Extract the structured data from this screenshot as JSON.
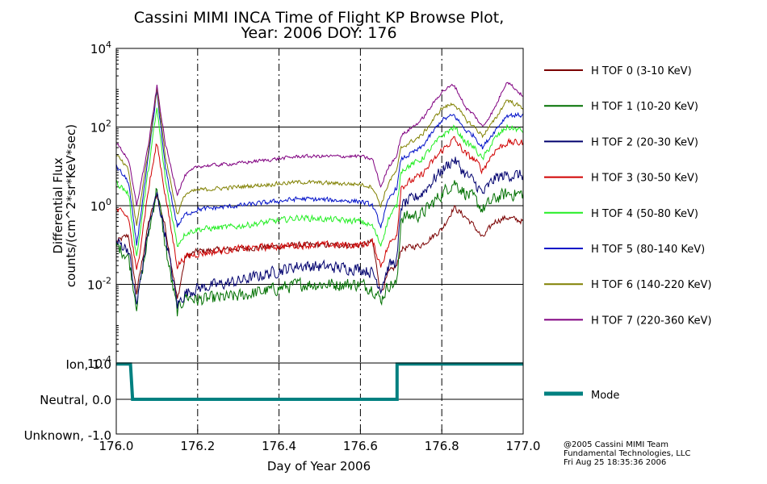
{
  "chart_data": {
    "type": "line",
    "title_line1": "Cassini MIMI INCA Time of Flight KP Browse Plot,",
    "title_line2": "Year: 2006 DOY: 176",
    "xlabel": "Day of Year 2006",
    "x_ticks": [
      "176.0",
      "176.2",
      "176.4",
      "176.6",
      "176.8",
      "177.0"
    ],
    "xlim": [
      176.0,
      177.0
    ],
    "upper_panel": {
      "ylabel_line1": "Differential Flux",
      "ylabel_line2": "counts/(cm^2*sr*KeV*sec)",
      "yscale": "log",
      "ylim": [
        0.0001,
        10000
      ],
      "y_ticks": [
        {
          "base": "10",
          "exp": "4",
          "value": 10000
        },
        {
          "base": "10",
          "exp": "2",
          "value": 100
        },
        {
          "base": "10",
          "exp": "0",
          "value": 1
        },
        {
          "base": "10",
          "exp": "-2",
          "value": 0.01
        },
        {
          "base": "10",
          "exp": "-4",
          "value": 0.0001
        }
      ],
      "note": "",
      "series": [
        {
          "name": "H TOF 0 (3-10 KeV)",
          "color": "#7a0000",
          "noise": 0.1,
          "points": [
            [
              176.0,
              0.12
            ],
            [
              176.03,
              0.18
            ],
            [
              176.05,
              0.006
            ],
            [
              176.08,
              0.4
            ],
            [
              176.1,
              2.0
            ],
            [
              176.12,
              0.3
            ],
            [
              176.15,
              0.004
            ],
            [
              176.17,
              0.05
            ],
            [
              176.2,
              0.07
            ],
            [
              176.3,
              0.08
            ],
            [
              176.45,
              0.1
            ],
            [
              176.6,
              0.1
            ],
            [
              176.63,
              0.12
            ],
            [
              176.65,
              0.006
            ],
            [
              176.67,
              0.02
            ],
            [
              176.69,
              0.03
            ],
            [
              176.7,
              0.08
            ],
            [
              176.75,
              0.1
            ],
            [
              176.8,
              0.25
            ],
            [
              176.83,
              0.9
            ],
            [
              176.86,
              0.5
            ],
            [
              176.88,
              0.3
            ],
            [
              176.9,
              0.15
            ],
            [
              176.93,
              0.4
            ],
            [
              176.96,
              0.5
            ],
            [
              177.0,
              0.4
            ]
          ]
        },
        {
          "name": "H TOF 1 (10-20 KeV)",
          "color": "#007000",
          "noise": 0.22,
          "points": [
            [
              176.0,
              0.1
            ],
            [
              176.03,
              0.05
            ],
            [
              176.05,
              0.003
            ],
            [
              176.08,
              0.2
            ],
            [
              176.1,
              3.0
            ],
            [
              176.12,
              0.1
            ],
            [
              176.15,
              0.002
            ],
            [
              176.17,
              0.005
            ],
            [
              176.2,
              0.004
            ],
            [
              176.3,
              0.005
            ],
            [
              176.45,
              0.01
            ],
            [
              176.6,
              0.01
            ],
            [
              176.63,
              0.008
            ],
            [
              176.65,
              0.004
            ],
            [
              176.67,
              0.01
            ],
            [
              176.69,
              0.01
            ],
            [
              176.7,
              0.5
            ],
            [
              176.75,
              0.6
            ],
            [
              176.8,
              2.0
            ],
            [
              176.83,
              4.0
            ],
            [
              176.86,
              2.0
            ],
            [
              176.88,
              1.5
            ],
            [
              176.9,
              0.8
            ],
            [
              176.93,
              1.5
            ],
            [
              176.96,
              2.0
            ],
            [
              177.0,
              2.0
            ]
          ]
        },
        {
          "name": "H TOF 2 (20-30 KeV)",
          "color": "#00006e",
          "noise": 0.2,
          "points": [
            [
              176.0,
              0.12
            ],
            [
              176.03,
              0.08
            ],
            [
              176.05,
              0.003
            ],
            [
              176.08,
              0.3
            ],
            [
              176.1,
              2.0
            ],
            [
              176.12,
              0.2
            ],
            [
              176.15,
              0.003
            ],
            [
              176.17,
              0.006
            ],
            [
              176.2,
              0.008
            ],
            [
              176.3,
              0.012
            ],
            [
              176.45,
              0.03
            ],
            [
              176.6,
              0.025
            ],
            [
              176.63,
              0.02
            ],
            [
              176.65,
              0.008
            ],
            [
              176.67,
              0.03
            ],
            [
              176.69,
              0.04
            ],
            [
              176.7,
              1.0
            ],
            [
              176.75,
              2.0
            ],
            [
              176.8,
              8.0
            ],
            [
              176.83,
              15.0
            ],
            [
              176.86,
              6.0
            ],
            [
              176.88,
              4.0
            ],
            [
              176.9,
              2.0
            ],
            [
              176.93,
              5.0
            ],
            [
              176.96,
              6.0
            ],
            [
              177.0,
              6.0
            ]
          ]
        },
        {
          "name": "H TOF 3 (30-50 KeV)",
          "color": "#d00000",
          "noise": 0.12,
          "points": [
            [
              176.0,
              0.8
            ],
            [
              176.03,
              0.5
            ],
            [
              176.05,
              0.02
            ],
            [
              176.08,
              3.0
            ],
            [
              176.1,
              40.0
            ],
            [
              176.12,
              2.0
            ],
            [
              176.15,
              0.03
            ],
            [
              176.17,
              0.05
            ],
            [
              176.2,
              0.06
            ],
            [
              176.3,
              0.08
            ],
            [
              176.45,
              0.1
            ],
            [
              176.6,
              0.1
            ],
            [
              176.63,
              0.12
            ],
            [
              176.65,
              0.03
            ],
            [
              176.67,
              0.1
            ],
            [
              176.69,
              0.2
            ],
            [
              176.7,
              3.0
            ],
            [
              176.75,
              6.0
            ],
            [
              176.8,
              25.0
            ],
            [
              176.83,
              50.0
            ],
            [
              176.86,
              20.0
            ],
            [
              176.88,
              15.0
            ],
            [
              176.9,
              8.0
            ],
            [
              176.93,
              25.0
            ],
            [
              176.96,
              40.0
            ],
            [
              177.0,
              40.0
            ]
          ]
        },
        {
          "name": "H TOF 4 (50-80 KeV)",
          "color": "#22ee22",
          "noise": 0.1,
          "points": [
            [
              176.0,
              4.0
            ],
            [
              176.03,
              2.0
            ],
            [
              176.05,
              0.05
            ],
            [
              176.08,
              10.0
            ],
            [
              176.1,
              300.0
            ],
            [
              176.12,
              5.0
            ],
            [
              176.15,
              0.1
            ],
            [
              176.17,
              0.2
            ],
            [
              176.2,
              0.25
            ],
            [
              176.3,
              0.3
            ],
            [
              176.45,
              0.5
            ],
            [
              176.6,
              0.4
            ],
            [
              176.63,
              0.3
            ],
            [
              176.65,
              0.1
            ],
            [
              176.67,
              0.5
            ],
            [
              176.69,
              1.0
            ],
            [
              176.7,
              8.0
            ],
            [
              176.75,
              15.0
            ],
            [
              176.8,
              60.0
            ],
            [
              176.83,
              100.0
            ],
            [
              176.86,
              40.0
            ],
            [
              176.88,
              30.0
            ],
            [
              176.9,
              15.0
            ],
            [
              176.93,
              50.0
            ],
            [
              176.96,
              100.0
            ],
            [
              177.0,
              80.0
            ]
          ]
        },
        {
          "name": "H TOF 5 (80-140 KeV)",
          "color": "#0010c8",
          "noise": 0.08,
          "points": [
            [
              176.0,
              10.0
            ],
            [
              176.03,
              4.0
            ],
            [
              176.05,
              0.1
            ],
            [
              176.08,
              20.0
            ],
            [
              176.1,
              800.0
            ],
            [
              176.12,
              10.0
            ],
            [
              176.15,
              0.3
            ],
            [
              176.17,
              0.6
            ],
            [
              176.2,
              0.8
            ],
            [
              176.3,
              1.0
            ],
            [
              176.45,
              1.5
            ],
            [
              176.6,
              1.3
            ],
            [
              176.63,
              1.0
            ],
            [
              176.65,
              0.3
            ],
            [
              176.67,
              1.5
            ],
            [
              176.69,
              3.0
            ],
            [
              176.7,
              15.0
            ],
            [
              176.75,
              30.0
            ],
            [
              176.8,
              150.0
            ],
            [
              176.83,
              200.0
            ],
            [
              176.86,
              80.0
            ],
            [
              176.88,
              60.0
            ],
            [
              176.9,
              30.0
            ],
            [
              176.93,
              80.0
            ],
            [
              176.96,
              200.0
            ],
            [
              177.0,
              200.0
            ]
          ]
        },
        {
          "name": "H TOF 6 (140-220 KeV)",
          "color": "#808000",
          "noise": 0.07,
          "points": [
            [
              176.0,
              20.0
            ],
            [
              176.03,
              8.0
            ],
            [
              176.05,
              0.3
            ],
            [
              176.08,
              30.0
            ],
            [
              176.1,
              1000.0
            ],
            [
              176.12,
              20.0
            ],
            [
              176.15,
              0.6
            ],
            [
              176.17,
              2.0
            ],
            [
              176.2,
              2.5
            ],
            [
              176.3,
              3.0
            ],
            [
              176.45,
              4.0
            ],
            [
              176.6,
              3.5
            ],
            [
              176.63,
              3.0
            ],
            [
              176.65,
              1.0
            ],
            [
              176.67,
              4.0
            ],
            [
              176.69,
              8.0
            ],
            [
              176.7,
              30.0
            ],
            [
              176.75,
              60.0
            ],
            [
              176.8,
              300.0
            ],
            [
              176.83,
              400.0
            ],
            [
              176.86,
              150.0
            ],
            [
              176.88,
              100.0
            ],
            [
              176.9,
              60.0
            ],
            [
              176.93,
              150.0
            ],
            [
              176.96,
              500.0
            ],
            [
              177.0,
              300.0
            ]
          ]
        },
        {
          "name": "H TOF 7 (220-360 KeV)",
          "color": "#800080",
          "noise": 0.06,
          "points": [
            [
              176.0,
              40.0
            ],
            [
              176.03,
              15.0
            ],
            [
              176.05,
              1.0
            ],
            [
              176.08,
              40.0
            ],
            [
              176.1,
              1100.0
            ],
            [
              176.12,
              40.0
            ],
            [
              176.15,
              2.0
            ],
            [
              176.17,
              6.0
            ],
            [
              176.2,
              10.0
            ],
            [
              176.3,
              12.0
            ],
            [
              176.45,
              18.0
            ],
            [
              176.6,
              18.0
            ],
            [
              176.63,
              15.0
            ],
            [
              176.65,
              3.0
            ],
            [
              176.67,
              10.0
            ],
            [
              176.69,
              20.0
            ],
            [
              176.7,
              60.0
            ],
            [
              176.75,
              150.0
            ],
            [
              176.8,
              800.0
            ],
            [
              176.83,
              1200.0
            ],
            [
              176.86,
              300.0
            ],
            [
              176.88,
              200.0
            ],
            [
              176.9,
              100.0
            ],
            [
              176.93,
              300.0
            ],
            [
              176.96,
              1500.0
            ],
            [
              177.0,
              600.0
            ]
          ]
        }
      ]
    },
    "lower_panel": {
      "y_ticks": [
        {
          "label": "Ion, 1.0",
          "value": 1.0
        },
        {
          "label": "Neutral, 0.0",
          "value": 0.0
        },
        {
          "label": "Unknown, -1.0",
          "value": -1.0
        }
      ],
      "ylim": [
        -1.0,
        1.0
      ],
      "series": {
        "name": "Mode",
        "color": "#008080",
        "points": [
          [
            176.0,
            1.0
          ],
          [
            176.035,
            1.0
          ],
          [
            176.04,
            0.0
          ],
          [
            176.69,
            0.0
          ],
          [
            176.69,
            1.0
          ],
          [
            177.0,
            1.0
          ]
        ]
      }
    },
    "grid": true,
    "legend_position": "right"
  },
  "credits": {
    "line1": "@2005 Cassini MIMI Team",
    "line2": "Fundamental Technologies, LLC",
    "line3": "Fri Aug 25 18:35:36 2006"
  }
}
